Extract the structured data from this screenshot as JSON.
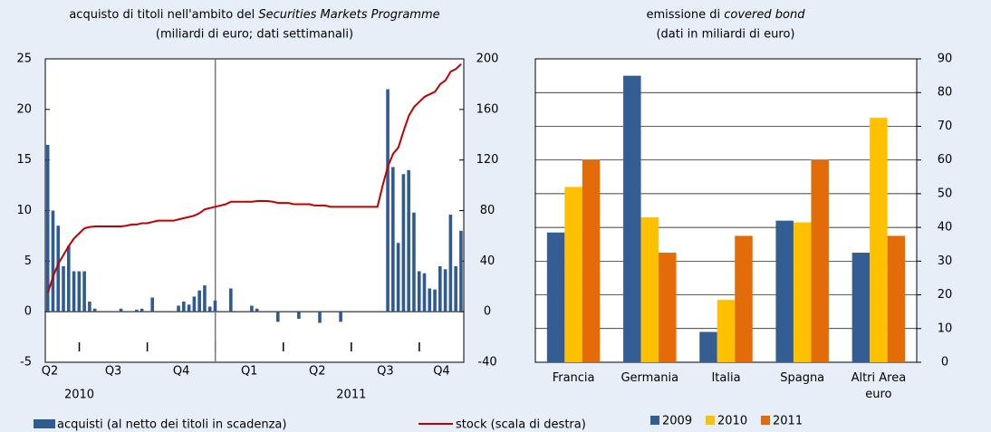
{
  "chart_data": [
    {
      "type": "bar_line",
      "title": "acquisto di titoli nell'ambito del",
      "title_italic": "Securities Markets Programme",
      "subtitle": "(miliardi di euro; dati settimanali)",
      "quarters": [
        "Q2",
        "Q3",
        "Q4",
        "Q1",
        "Q2",
        "Q3",
        "Q4"
      ],
      "years": [
        "2010",
        "2011"
      ],
      "series": [
        {
          "name": "acquisti (al netto dei titoli in scadenza)",
          "color": "#2f5b93",
          "kind": "bar",
          "values": [
            16.5,
            10,
            8.5,
            4.5,
            6.5,
            4,
            4,
            4,
            1,
            0.3,
            0,
            0,
            0,
            0,
            0.3,
            0,
            0,
            0.2,
            0.3,
            0,
            1.4,
            0,
            0,
            0,
            0,
            0.6,
            1,
            0.7,
            1.5,
            2.1,
            2.6,
            0.5,
            1.1,
            0,
            0,
            2.3,
            0,
            0,
            0,
            0.6,
            0.3,
            0,
            0,
            0,
            -1,
            0,
            0,
            0,
            -0.7,
            0,
            0,
            0,
            -1.1,
            0,
            0,
            0,
            -1,
            0,
            0,
            0,
            0,
            0,
            0,
            0,
            0,
            22,
            14.3,
            6.8,
            13.6,
            14,
            9.8,
            4,
            3.8,
            2.3,
            2.2,
            4.5,
            4.2,
            9.6,
            4.5,
            8
          ]
        },
        {
          "name": "stock (scala di destra)",
          "color": "#c00000",
          "kind": "line",
          "axis": "y2",
          "values": [
            15,
            28,
            38,
            45,
            52,
            58,
            62,
            66,
            67,
            67.5,
            67.5,
            67.5,
            67.5,
            67.5,
            67.5,
            68,
            69,
            69,
            70,
            70,
            71,
            72,
            72,
            72,
            72,
            73,
            74,
            75,
            76,
            78,
            81,
            82,
            83,
            84,
            85,
            87,
            87,
            87,
            87,
            87,
            87.5,
            87.5,
            87.5,
            87,
            86,
            86,
            86,
            85,
            85,
            85,
            85,
            84,
            84,
            84,
            83,
            83,
            83,
            83,
            83,
            83,
            83,
            83,
            83,
            83,
            100,
            115,
            125,
            130,
            143,
            155,
            162,
            166,
            170,
            172,
            174,
            180,
            183,
            190,
            192,
            196
          ]
        }
      ],
      "ylim": [
        -5,
        25
      ],
      "yticks": [
        -5,
        0,
        5,
        10,
        15,
        20,
        25
      ],
      "y2lim": [
        -40,
        200
      ],
      "y2ticks": [
        -40,
        0,
        40,
        80,
        120,
        160,
        200
      ]
    },
    {
      "type": "bar",
      "title": "emissione di",
      "title_italic": "covered bond",
      "subtitle": "(dati in miliardi di euro)",
      "categories": [
        "Francia",
        "Germania",
        "Italia",
        "Spagna",
        "Altri Area euro"
      ],
      "series": [
        {
          "name": "2009",
          "color": "#345d94",
          "values": [
            38.5,
            85,
            9,
            42,
            32.5
          ]
        },
        {
          "name": "2010",
          "color": "#ffc000",
          "values": [
            52,
            43,
            18.5,
            41.5,
            72.5
          ]
        },
        {
          "name": "2011",
          "color": "#e36c09",
          "values": [
            60,
            32.5,
            37.5,
            60,
            37.5
          ]
        }
      ],
      "ylim": [
        0,
        90
      ],
      "yticks": [
        0,
        10,
        20,
        30,
        40,
        50,
        60,
        70,
        80,
        90
      ],
      "grid": true
    }
  ]
}
